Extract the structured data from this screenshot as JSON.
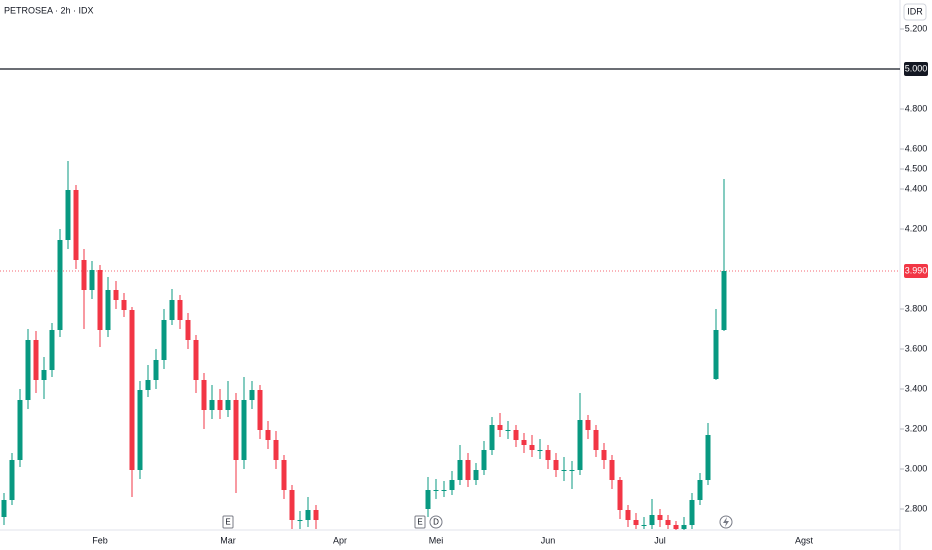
{
  "chart_data": {
    "type": "candlestick",
    "title": "PETROSEA · 2h · IDX",
    "currency": "IDR",
    "up_color": "#089981",
    "down_color": "#f23645",
    "categories": [
      null,
      null,
      null,
      null,
      null,
      null,
      null,
      null,
      null,
      null,
      null,
      null,
      "Feb",
      null,
      null,
      null,
      null,
      null,
      null,
      null,
      null,
      null,
      null,
      null,
      null,
      null,
      null,
      null,
      "Mar",
      null,
      null,
      null,
      null,
      null,
      null,
      null,
      null,
      null,
      null,
      null,
      null,
      null,
      "Apr",
      null,
      null,
      null,
      null,
      null,
      null,
      null,
      null,
      null,
      null,
      null,
      "Mei",
      null,
      null,
      null,
      null,
      null,
      null,
      null,
      null,
      null,
      null,
      null,
      null,
      null,
      "Jun",
      null,
      null,
      null,
      null,
      null,
      null,
      null,
      null,
      null,
      null,
      null,
      null,
      null,
      "Jul",
      null,
      null,
      null,
      null,
      null,
      null,
      null,
      null,
      null,
      null,
      null,
      null,
      null,
      null,
      null,
      null,
      null,
      "Agst",
      null,
      null,
      null,
      null,
      null,
      null,
      null,
      null,
      null,
      null,
      null
    ],
    "open": [
      2760,
      2845,
      3045,
      3345,
      3645,
      3445,
      3495,
      3695,
      4145,
      4395,
      4045,
      3895,
      3995,
      3695,
      3895,
      3845,
      3795,
      2995,
      3395,
      3445,
      3545,
      3745,
      3845,
      3745,
      3645,
      3445,
      3295,
      3345,
      3295,
      3345,
      3045,
      3345,
      3395,
      3195,
      3145,
      3045,
      2895,
      2745,
      2745,
      2795,
      null,
      null,
      null,
      null,
      null,
      null,
      null,
      null,
      null,
      null,
      null,
      null,
      null,
      2800,
      2895,
      2895,
      2895,
      2945,
      3045,
      2945,
      2995,
      3095,
      3220,
      3195,
      3195,
      3145,
      3120,
      3095,
      3095,
      3045,
      2995,
      2995,
      2995,
      3245,
      3195,
      3095,
      3045,
      2945,
      2795,
      2745,
      2720,
      2720,
      2770,
      2745,
      2720,
      2700,
      2720,
      2845,
      2945,
      3450,
      3695,
      null,
      null,
      null,
      null,
      null,
      null,
      null,
      null,
      null,
      null,
      null,
      null,
      null,
      null,
      null,
      null,
      null,
      null,
      null,
      null,
      null
    ],
    "high": [
      2880,
      3080,
      3400,
      3700,
      3690,
      3560,
      3730,
      4200,
      4540,
      4420,
      4100,
      4040,
      4020,
      3960,
      3940,
      3880,
      3810,
      3440,
      3520,
      3600,
      3800,
      3900,
      3870,
      3780,
      3670,
      3480,
      3420,
      3400,
      3440,
      3380,
      3460,
      3440,
      3420,
      3240,
      3190,
      3070,
      2920,
      2790,
      2860,
      2820,
      null,
      null,
      null,
      null,
      null,
      null,
      null,
      null,
      null,
      null,
      null,
      null,
      null,
      2960,
      2950,
      2940,
      2990,
      3120,
      3080,
      3030,
      3140,
      3260,
      3280,
      3240,
      3220,
      3180,
      3170,
      3150,
      3120,
      3080,
      3060,
      3040,
      3380,
      3270,
      3220,
      3130,
      3070,
      2960,
      2820,
      2780,
      2760,
      2850,
      2800,
      2770,
      2740,
      2760,
      2880,
      2980,
      3230,
      3800,
      4450,
      null,
      null,
      null,
      null,
      null,
      null,
      null,
      null,
      null,
      null,
      null,
      null,
      null,
      null,
      null,
      null,
      null,
      null,
      null,
      null,
      null
    ],
    "low": [
      2720,
      2820,
      3010,
      3300,
      3380,
      3350,
      3460,
      3660,
      4100,
      4000,
      3700,
      3850,
      3610,
      3660,
      3800,
      3760,
      2860,
      2950,
      3360,
      3400,
      3500,
      3720,
      3700,
      3600,
      3380,
      3200,
      3250,
      3250,
      3260,
      2880,
      3000,
      3300,
      3150,
      3100,
      3000,
      2850,
      2700,
      2700,
      2710,
      2700,
      null,
      null,
      null,
      null,
      null,
      null,
      null,
      null,
      null,
      null,
      null,
      null,
      null,
      2760,
      2850,
      2860,
      2870,
      2920,
      2910,
      2920,
      2970,
      3070,
      3160,
      3150,
      3110,
      3080,
      3060,
      3050,
      3000,
      2960,
      2940,
      2900,
      2970,
      3150,
      3060,
      3000,
      2900,
      2750,
      2710,
      2700,
      2700,
      2700,
      2710,
      2700,
      2695,
      2695,
      2700,
      2820,
      2920,
      3445,
      3690,
      null,
      null,
      null,
      null,
      null,
      null,
      null,
      null,
      null,
      null,
      null,
      null,
      null,
      null,
      null,
      null,
      null,
      null,
      null,
      null,
      null
    ],
    "close": [
      2845,
      3045,
      3345,
      3645,
      3445,
      3495,
      3695,
      4145,
      4395,
      4045,
      3895,
      3995,
      3695,
      3895,
      3845,
      3795,
      2995,
      3395,
      3445,
      3545,
      3745,
      3845,
      3745,
      3645,
      3445,
      3295,
      3345,
      3295,
      3345,
      3045,
      3345,
      3395,
      3195,
      3145,
      3045,
      2895,
      2745,
      2745,
      2795,
      2745,
      null,
      null,
      null,
      null,
      null,
      null,
      null,
      null,
      null,
      null,
      null,
      null,
      null,
      2895,
      2895,
      2895,
      2945,
      3045,
      2945,
      2995,
      3095,
      3220,
      3195,
      3195,
      3145,
      3120,
      3095,
      3095,
      3045,
      2995,
      2995,
      2995,
      3245,
      3195,
      3095,
      3045,
      2945,
      2795,
      2745,
      2720,
      2720,
      2770,
      2745,
      2720,
      2700,
      2720,
      2845,
      2945,
      3170,
      3695,
      3990,
      null,
      null,
      null,
      null,
      null,
      null,
      null,
      null,
      null,
      null,
      null,
      null,
      null,
      null,
      null,
      null,
      null,
      null,
      null,
      null,
      null
    ],
    "ylim": [
      2695,
      5345
    ],
    "yticks": [
      {
        "value": 2800,
        "label": "2.800"
      },
      {
        "value": 3000,
        "label": "3.000"
      },
      {
        "value": 3200,
        "label": "3.200"
      },
      {
        "value": 3400,
        "label": "3.400"
      },
      {
        "value": 3600,
        "label": "3.600"
      },
      {
        "value": 3800,
        "label": "3.800"
      },
      {
        "value": 4200,
        "label": "4.200"
      },
      {
        "value": 4400,
        "label": "4.400"
      },
      {
        "value": 4500,
        "label": "4.500"
      },
      {
        "value": 4600,
        "label": "4.600"
      },
      {
        "value": 4800,
        "label": "4.800"
      },
      {
        "value": 5200,
        "label": "5.200"
      }
    ],
    "hline": {
      "value": 5000,
      "label": "5.000"
    },
    "last_price": {
      "value": 3990,
      "label": "3.990"
    },
    "events": [
      {
        "index": 28,
        "label": "E"
      },
      {
        "index": 52,
        "label": "E"
      },
      {
        "index": 54,
        "label": "D"
      }
    ]
  }
}
